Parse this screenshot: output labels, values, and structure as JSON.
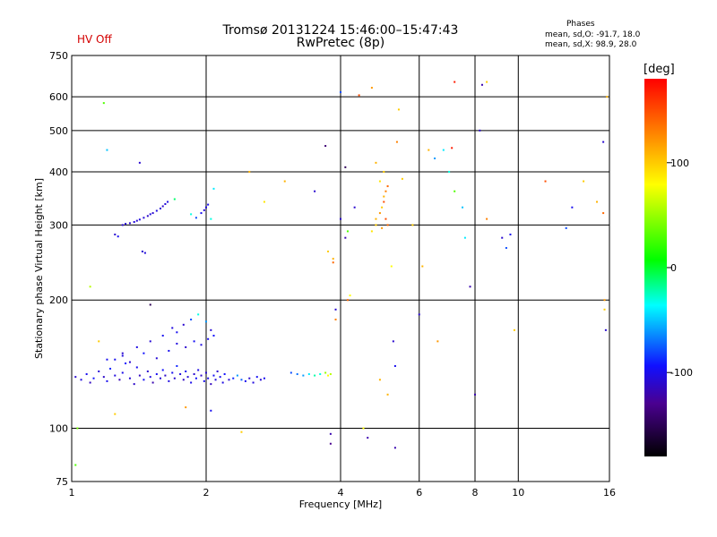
{
  "header": {
    "title_line1": "Tromsø 20131224 15:46:00–15:47:43",
    "title_line2": "RwPretec (8p)",
    "status": "HV Off"
  },
  "stats": {
    "title": "Phases",
    "o_line": "mean, sd,O: -91.7, 18.0",
    "x_line": "mean, sd,X:  98.9, 28.0"
  },
  "chart_data": {
    "type": "scatter",
    "xlabel": "Frequency [MHz]",
    "ylabel": "Stationary phase Virtual Height [km]",
    "x_scale": "log",
    "y_scale": "log",
    "xlim": [
      1,
      16
    ],
    "ylim": [
      75,
      750
    ],
    "x_ticks": [
      1,
      2,
      4,
      6,
      8,
      10,
      16
    ],
    "y_ticks": [
      75,
      100,
      200,
      300,
      400,
      500,
      600,
      750
    ],
    "grid": true,
    "colorbar": {
      "unit": "[deg]",
      "ticks": [
        100,
        0,
        -100
      ],
      "range": [
        -180,
        180
      ]
    },
    "series": [
      {
        "points": [
          [
            1.02,
            132,
            -110
          ],
          [
            1.05,
            130,
            -105
          ],
          [
            1.08,
            134,
            -100
          ],
          [
            1.1,
            128,
            -115
          ],
          [
            1.12,
            131,
            -95
          ],
          [
            1.15,
            136,
            -108
          ],
          [
            1.18,
            132,
            -112
          ],
          [
            1.2,
            129,
            -100
          ],
          [
            1.22,
            138,
            -90
          ],
          [
            1.25,
            133,
            -105
          ],
          [
            1.28,
            130,
            -118
          ],
          [
            1.3,
            135,
            -102
          ],
          [
            1.32,
            142,
            -95
          ],
          [
            1.35,
            131,
            -108
          ],
          [
            1.38,
            127,
            -112
          ],
          [
            1.4,
            139,
            -100
          ],
          [
            1.42,
            133,
            -115
          ],
          [
            1.45,
            130,
            -98
          ],
          [
            1.48,
            136,
            -110
          ],
          [
            1.5,
            132,
            -105
          ],
          [
            1.52,
            128,
            -120
          ],
          [
            1.55,
            134,
            -100
          ],
          [
            1.58,
            131,
            -108
          ],
          [
            1.6,
            137,
            -95
          ],
          [
            1.62,
            133,
            -112
          ],
          [
            1.65,
            129,
            -104
          ],
          [
            1.68,
            135,
            -100
          ],
          [
            1.7,
            131,
            -110
          ],
          [
            1.72,
            140,
            -90
          ],
          [
            1.75,
            134,
            -106
          ],
          [
            1.78,
            130,
            -114
          ],
          [
            1.8,
            136,
            -100
          ],
          [
            1.82,
            132,
            -108
          ],
          [
            1.85,
            128,
            -102
          ],
          [
            1.88,
            134,
            -110
          ],
          [
            1.9,
            131,
            -96
          ],
          [
            1.92,
            137,
            -104
          ],
          [
            1.95,
            133,
            -112
          ],
          [
            1.98,
            129,
            -100
          ],
          [
            2.0,
            135,
            -108
          ],
          [
            2.02,
            131,
            -102
          ],
          [
            2.05,
            127,
            -115
          ],
          [
            2.08,
            133,
            -98
          ],
          [
            2.1,
            130,
            -106
          ],
          [
            2.12,
            136,
            -110
          ],
          [
            2.15,
            132,
            -100
          ],
          [
            2.18,
            128,
            -104
          ],
          [
            2.2,
            134,
            -96
          ],
          [
            2.25,
            130,
            -108
          ],
          [
            2.3,
            131,
            -90
          ],
          [
            2.35,
            133,
            -60
          ],
          [
            2.4,
            130,
            -75
          ],
          [
            2.45,
            129,
            -100
          ],
          [
            2.5,
            131,
            -110
          ],
          [
            2.55,
            128,
            -105
          ],
          [
            2.6,
            132,
            -98
          ],
          [
            2.65,
            130,
            -108
          ],
          [
            2.7,
            131,
            -100
          ],
          [
            1.25,
            145,
            -100
          ],
          [
            1.3,
            148,
            -105
          ],
          [
            1.35,
            143,
            -110
          ],
          [
            1.45,
            150,
            -95
          ],
          [
            1.55,
            146,
            -108
          ],
          [
            1.65,
            152,
            -100
          ],
          [
            1.72,
            158,
            -105
          ],
          [
            1.8,
            155,
            -110
          ],
          [
            1.88,
            160,
            -98
          ],
          [
            1.95,
            157,
            -104
          ],
          [
            2.02,
            162,
            -100
          ],
          [
            2.05,
            170,
            -108
          ],
          [
            2.08,
            165,
            -96
          ],
          [
            1.78,
            175,
            -110
          ],
          [
            1.72,
            168,
            -100
          ],
          [
            1.85,
            180,
            -80
          ],
          [
            1.92,
            185,
            -30
          ],
          [
            2.0,
            178,
            -60
          ],
          [
            1.68,
            172,
            -105
          ],
          [
            1.6,
            165,
            -100
          ],
          [
            1.5,
            160,
            -108
          ],
          [
            1.4,
            155,
            -104
          ],
          [
            1.3,
            150,
            -110
          ],
          [
            1.2,
            145,
            -100
          ],
          [
            1.3,
            300,
            -110
          ],
          [
            1.32,
            302,
            -108
          ],
          [
            1.35,
            303,
            -112
          ],
          [
            1.38,
            305,
            -106
          ],
          [
            1.4,
            307,
            -110
          ],
          [
            1.42,
            309,
            -104
          ],
          [
            1.45,
            312,
            -108
          ],
          [
            1.48,
            315,
            -112
          ],
          [
            1.5,
            318,
            -106
          ],
          [
            1.52,
            320,
            -110
          ],
          [
            1.55,
            324,
            -104
          ],
          [
            1.58,
            328,
            -108
          ],
          [
            1.6,
            332,
            -112
          ],
          [
            1.62,
            336,
            -106
          ],
          [
            1.64,
            340,
            -104
          ],
          [
            1.44,
            260,
            -110
          ],
          [
            1.46,
            258,
            -106
          ],
          [
            1.25,
            285,
            -110
          ],
          [
            1.27,
            282,
            -100
          ],
          [
            1.95,
            320,
            -100
          ],
          [
            1.98,
            325,
            -108
          ],
          [
            2.0,
            330,
            -104
          ],
          [
            2.02,
            335,
            -100
          ],
          [
            2.05,
            310,
            -30
          ],
          [
            1.85,
            318,
            -30
          ],
          [
            1.9,
            312,
            -80
          ],
          [
            2.08,
            365,
            -40
          ],
          [
            3.1,
            135,
            -80
          ],
          [
            3.2,
            134,
            -70
          ],
          [
            3.3,
            133,
            -60
          ],
          [
            3.4,
            134,
            -40
          ],
          [
            3.5,
            133,
            -20
          ],
          [
            3.6,
            134,
            -30
          ],
          [
            3.7,
            135,
            50
          ],
          [
            3.75,
            133,
            80
          ],
          [
            3.8,
            134,
            60
          ],
          [
            3.75,
            260,
            100
          ],
          [
            3.85,
            250,
            110
          ],
          [
            3.85,
            245,
            140
          ],
          [
            3.9,
            190,
            -110
          ],
          [
            3.9,
            180,
            130
          ],
          [
            3.8,
            97,
            -120
          ],
          [
            3.8,
            92,
            -130
          ],
          [
            4.0,
            310,
            -110
          ],
          [
            4.1,
            280,
            -120
          ],
          [
            4.15,
            290,
            30
          ],
          [
            4.2,
            205,
            80
          ],
          [
            4.3,
            330,
            -110
          ],
          [
            4.6,
            95,
            -120
          ],
          [
            4.7,
            290,
            90
          ],
          [
            4.8,
            310,
            110
          ],
          [
            4.8,
            300,
            100
          ],
          [
            4.9,
            320,
            120
          ],
          [
            4.95,
            330,
            100
          ],
          [
            5.0,
            340,
            150
          ],
          [
            5.0,
            350,
            110
          ],
          [
            5.05,
            360,
            130
          ],
          [
            5.1,
            370,
            140
          ],
          [
            4.9,
            380,
            90
          ],
          [
            5.0,
            400,
            100
          ],
          [
            4.8,
            420,
            110
          ],
          [
            5.05,
            310,
            150
          ],
          [
            5.1,
            300,
            140
          ],
          [
            4.95,
            295,
            120
          ],
          [
            5.2,
            240,
            80
          ],
          [
            5.25,
            160,
            -110
          ],
          [
            5.3,
            90,
            -120
          ],
          [
            5.35,
            470,
            130
          ],
          [
            5.4,
            560,
            100
          ],
          [
            4.7,
            630,
            120
          ],
          [
            4.0,
            615,
            -80
          ],
          [
            5.5,
            385,
            100
          ],
          [
            5.8,
            300,
            100
          ],
          [
            6.1,
            240,
            110
          ],
          [
            6.0,
            185,
            -110
          ],
          [
            6.3,
            450,
            110
          ],
          [
            6.5,
            430,
            -60
          ],
          [
            6.8,
            450,
            -40
          ],
          [
            7.0,
            400,
            -30
          ],
          [
            7.2,
            360,
            30
          ],
          [
            7.5,
            330,
            -50
          ],
          [
            7.6,
            280,
            -40
          ],
          [
            7.8,
            215,
            -120
          ],
          [
            8.0,
            120,
            -120
          ],
          [
            8.2,
            500,
            -110
          ],
          [
            8.5,
            310,
            130
          ],
          [
            9.2,
            280,
            -110
          ],
          [
            9.4,
            265,
            -80
          ],
          [
            9.6,
            285,
            -100
          ],
          [
            9.8,
            170,
            100
          ],
          [
            11.5,
            380,
            150
          ],
          [
            12.8,
            295,
            -80
          ],
          [
            13.2,
            330,
            -100
          ],
          [
            14.0,
            380,
            100
          ],
          [
            15.0,
            340,
            110
          ],
          [
            15.5,
            320,
            140
          ],
          [
            15.6,
            200,
            120
          ],
          [
            15.6,
            190,
            100
          ],
          [
            15.7,
            170,
            -110
          ],
          [
            15.5,
            470,
            -110
          ],
          [
            15.8,
            600,
            110
          ],
          [
            1.1,
            215,
            60
          ],
          [
            1.18,
            580,
            30
          ],
          [
            1.2,
            450,
            -50
          ],
          [
            1.15,
            160,
            100
          ],
          [
            1.25,
            108,
            100
          ],
          [
            1.03,
            100,
            40
          ],
          [
            1.02,
            82,
            30
          ],
          [
            1.5,
            195,
            -150
          ],
          [
            1.42,
            420,
            -110
          ],
          [
            1.7,
            345,
            -10
          ],
          [
            2.5,
            400,
            110
          ],
          [
            2.7,
            340,
            90
          ],
          [
            3.0,
            380,
            110
          ],
          [
            3.5,
            360,
            -110
          ],
          [
            3.7,
            460,
            -140
          ],
          [
            4.1,
            410,
            -150
          ],
          [
            4.15,
            200,
            140
          ],
          [
            4.4,
            605,
            150
          ],
          [
            4.5,
            100,
            80
          ],
          [
            4.9,
            130,
            110
          ],
          [
            5.1,
            120,
            110
          ],
          [
            5.3,
            140,
            -100
          ],
          [
            6.6,
            160,
            120
          ],
          [
            7.1,
            455,
            170
          ],
          [
            7.2,
            650,
            170
          ],
          [
            8.3,
            640,
            -120
          ],
          [
            8.5,
            650,
            100
          ],
          [
            1.8,
            112,
            120
          ],
          [
            2.05,
            110,
            -100
          ],
          [
            2.4,
            98,
            100
          ]
        ]
      }
    ]
  }
}
